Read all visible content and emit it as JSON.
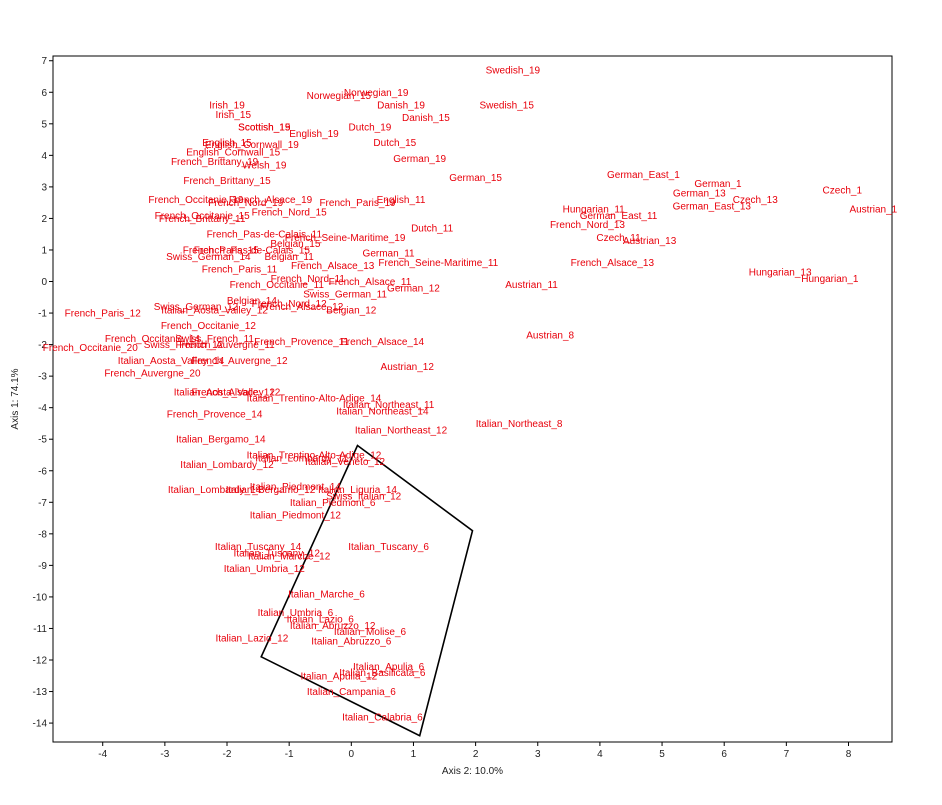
{
  "chart_data": {
    "type": "scatter",
    "title": "",
    "xlabel": "Axis 2: 10.0%",
    "ylabel": "Axis 1: 74.1%",
    "xlim": [
      -4.8,
      8.7
    ],
    "ylim": [
      -14.6,
      7.15
    ],
    "xticks": [
      -4,
      -3,
      -2,
      -1,
      0,
      1,
      2,
      3,
      4,
      5,
      6,
      7,
      8
    ],
    "yticks": [
      7,
      6,
      5,
      4,
      3,
      2,
      1,
      0,
      -1,
      -2,
      -3,
      -4,
      -5,
      -6,
      -7,
      -8,
      -9,
      -10,
      -11,
      -12,
      -13,
      -14
    ],
    "grid": false,
    "label_color": "#e8000b",
    "polygon_color": "#000000",
    "points": [
      {
        "label": "Swedish_19",
        "x": 2.6,
        "y": 6.7
      },
      {
        "label": "Norwegian_19",
        "x": 0.4,
        "y": 6.0
      },
      {
        "label": "Norwegian_15",
        "x": -0.2,
        "y": 5.9
      },
      {
        "label": "Danish_19",
        "x": 0.8,
        "y": 5.6
      },
      {
        "label": "Swedish_15",
        "x": 2.5,
        "y": 5.6
      },
      {
        "label": "Danish_15",
        "x": 1.2,
        "y": 5.2
      },
      {
        "label": "Irish_19",
        "x": -2.0,
        "y": 5.6
      },
      {
        "label": "Irish_15",
        "x": -1.9,
        "y": 5.3
      },
      {
        "label": "Scottish_19",
        "x": -1.4,
        "y": 4.9
      },
      {
        "label": "Scottish_15",
        "x": -1.4,
        "y": 4.9
      },
      {
        "label": "English_19",
        "x": -0.6,
        "y": 4.7
      },
      {
        "label": "Dutch_19",
        "x": 0.3,
        "y": 4.9
      },
      {
        "label": "Dutch_15",
        "x": 0.7,
        "y": 4.4
      },
      {
        "label": "English_15",
        "x": -2.0,
        "y": 4.4
      },
      {
        "label": "English_Cornwall_19",
        "x": -1.6,
        "y": 4.35
      },
      {
        "label": "English_Cornwall_15",
        "x": -1.9,
        "y": 4.1
      },
      {
        "label": "German_19",
        "x": 1.1,
        "y": 3.9
      },
      {
        "label": "French_Brittany_19",
        "x": -2.2,
        "y": 3.8
      },
      {
        "label": "Welsh_19",
        "x": -1.4,
        "y": 3.7
      },
      {
        "label": "German_15",
        "x": 2.0,
        "y": 3.3
      },
      {
        "label": "French_Brittany_15",
        "x": -2.0,
        "y": 3.2
      },
      {
        "label": "German_East_1",
        "x": 4.7,
        "y": 3.4
      },
      {
        "label": "German_1",
        "x": 5.9,
        "y": 3.1
      },
      {
        "label": "German_13",
        "x": 5.6,
        "y": 2.8
      },
      {
        "label": "German_East_13",
        "x": 5.8,
        "y": 2.4
      },
      {
        "label": "Czech_13",
        "x": 6.5,
        "y": 2.6
      },
      {
        "label": "Czech_1",
        "x": 7.9,
        "y": 2.9
      },
      {
        "label": "Austrian_1",
        "x": 8.4,
        "y": 2.3
      },
      {
        "label": "French_Occitanie_19",
        "x": -2.5,
        "y": 2.6
      },
      {
        "label": "French_Alsace_19",
        "x": -1.3,
        "y": 2.6
      },
      {
        "label": "French_Nord_19",
        "x": -1.7,
        "y": 2.5
      },
      {
        "label": "French_Paris_19",
        "x": 0.1,
        "y": 2.5
      },
      {
        "label": "English_11",
        "x": 0.8,
        "y": 2.6
      },
      {
        "label": "French_Occitanie_15",
        "x": -2.4,
        "y": 2.1
      },
      {
        "label": "French_Nord_15",
        "x": -1.0,
        "y": 2.2
      },
      {
        "label": "French_Brittany_11",
        "x": -2.4,
        "y": 2.0
      },
      {
        "label": "Hungarian_11",
        "x": 3.9,
        "y": 2.3
      },
      {
        "label": "German_East_11",
        "x": 4.3,
        "y": 2.1
      },
      {
        "label": "French_Nord_13",
        "x": 3.8,
        "y": 1.8
      },
      {
        "label": "Dutch_11",
        "x": 1.3,
        "y": 1.7
      },
      {
        "label": "Czech_11",
        "x": 4.3,
        "y": 1.4
      },
      {
        "label": "Austrian_13",
        "x": 4.8,
        "y": 1.3
      },
      {
        "label": "French_Pas-de-Calais_11",
        "x": -1.4,
        "y": 1.5
      },
      {
        "label": "French_Seine-Maritime_19",
        "x": -0.1,
        "y": 1.4
      },
      {
        "label": "Belgian_15",
        "x": -0.9,
        "y": 1.2
      },
      {
        "label": "French_Pas-de-Calais_15",
        "x": -1.6,
        "y": 1.0
      },
      {
        "label": "French_Paris_15",
        "x": -2.1,
        "y": 1.0
      },
      {
        "label": "Belgian_11",
        "x": -1.0,
        "y": 0.8
      },
      {
        "label": "German_11",
        "x": 0.6,
        "y": 0.9
      },
      {
        "label": "Swiss_German_14",
        "x": -2.3,
        "y": 0.8
      },
      {
        "label": "French_Paris_11",
        "x": -1.8,
        "y": 0.4
      },
      {
        "label": "French_Alsace_13",
        "x": -0.3,
        "y": 0.5
      },
      {
        "label": "French_Seine-Maritime_11",
        "x": 1.4,
        "y": 0.6
      },
      {
        "label": "French_Alsace_13",
        "x": 4.2,
        "y": 0.6
      },
      {
        "label": "Hungarian_13",
        "x": 6.9,
        "y": 0.3
      },
      {
        "label": "Hungarian_1",
        "x": 7.7,
        "y": 0.1
      },
      {
        "label": "French_Nord_11",
        "x": -0.7,
        "y": 0.1
      },
      {
        "label": "French_Alsace_11",
        "x": 0.3,
        "y": 0.0
      },
      {
        "label": "French_Occitanie_11",
        "x": -1.2,
        "y": -0.1
      },
      {
        "label": "Austrian_11",
        "x": 2.9,
        "y": -0.1
      },
      {
        "label": "German_12",
        "x": 1.0,
        "y": -0.2
      },
      {
        "label": "Swiss_German_11",
        "x": -0.1,
        "y": -0.4
      },
      {
        "label": "Belgian_14",
        "x": -1.6,
        "y": -0.6
      },
      {
        "label": "French_Nord_12",
        "x": -1.0,
        "y": -0.7
      },
      {
        "label": "Swiss_German_12",
        "x": -2.5,
        "y": -0.8
      },
      {
        "label": "French_Alsace_12",
        "x": -0.8,
        "y": -0.8
      },
      {
        "label": "Italian_Aosta_Valley_12",
        "x": -2.2,
        "y": -0.9
      },
      {
        "label": "Belgian_12",
        "x": 0.0,
        "y": -0.9
      },
      {
        "label": "French_Paris_12",
        "x": -4.0,
        "y": -1.0
      },
      {
        "label": "French_Occitanie_12",
        "x": -2.3,
        "y": -1.4
      },
      {
        "label": "Swiss_French_11",
        "x": -2.2,
        "y": -1.8
      },
      {
        "label": "French_Occitanie_14",
        "x": -3.2,
        "y": -1.8
      },
      {
        "label": "French_Provence_11",
        "x": -0.8,
        "y": -1.9
      },
      {
        "label": "French_Alsace_14",
        "x": 0.5,
        "y": -1.9
      },
      {
        "label": "Austrian_8",
        "x": 3.2,
        "y": -1.7
      },
      {
        "label": "French_Occitanie_20",
        "x": -4.2,
        "y": -2.1
      },
      {
        "label": "Swiss_French_12",
        "x": -2.7,
        "y": -2.0
      },
      {
        "label": "French_Auvergne_11",
        "x": -2.0,
        "y": -2.0
      },
      {
        "label": "Italian_Aosta_Valley_14",
        "x": -2.9,
        "y": -2.5
      },
      {
        "label": "French_Auvergne_12",
        "x": -1.8,
        "y": -2.5
      },
      {
        "label": "Austrian_12",
        "x": 0.9,
        "y": -2.7
      },
      {
        "label": "French_Auvergne_20",
        "x": -3.2,
        "y": -2.9
      },
      {
        "label": "Italian_Aosta_Valley_12",
        "x": -2.0,
        "y": -3.5
      },
      {
        "label": "French_Alsace_12",
        "x": -1.9,
        "y": -3.5
      },
      {
        "label": "Italian_Trentino-Alto-Adige_14",
        "x": -0.6,
        "y": -3.7
      },
      {
        "label": "Italian_Northeast_11",
        "x": 0.6,
        "y": -3.9
      },
      {
        "label": "Italian_Northeast_14",
        "x": 0.5,
        "y": -4.1
      },
      {
        "label": "French_Provence_14",
        "x": -2.2,
        "y": -4.2
      },
      {
        "label": "Italian_Northeast_8",
        "x": 2.7,
        "y": -4.5
      },
      {
        "label": "Italian_Northeast_12",
        "x": 0.8,
        "y": -4.7
      },
      {
        "label": "Italian_Bergamo_14",
        "x": -2.1,
        "y": -5.0
      },
      {
        "label": "Italian_Trentino-Alto-Adige_12",
        "x": -0.6,
        "y": -5.5
      },
      {
        "label": "Italian_Lombardy_11",
        "x": -0.8,
        "y": -5.6
      },
      {
        "label": "Italian_Veneto_12",
        "x": -0.1,
        "y": -5.7
      },
      {
        "label": "Italian_Lombardy_12",
        "x": -2.0,
        "y": -5.8
      },
      {
        "label": "Italian_Lombardy_14",
        "x": -2.2,
        "y": -6.6
      },
      {
        "label": "Italian_Bergamo_12",
        "x": -1.3,
        "y": -6.6
      },
      {
        "label": "Italian_Piedmont_14",
        "x": -0.9,
        "y": -6.5
      },
      {
        "label": "Italian_Liguria_14",
        "x": 0.1,
        "y": -6.6
      },
      {
        "label": "Swiss_Italian_12",
        "x": 0.2,
        "y": -6.8
      },
      {
        "label": "Italian_Piedmont_6",
        "x": -0.3,
        "y": -7.0
      },
      {
        "label": "Italian_Piedmont_12",
        "x": -0.9,
        "y": -7.4
      },
      {
        "label": "Italian_Tuscany_14",
        "x": -1.5,
        "y": -8.4
      },
      {
        "label": "Italian_Tuscany_6",
        "x": 0.6,
        "y": -8.4
      },
      {
        "label": "Italian_Tuscany_12",
        "x": -1.2,
        "y": -8.6
      },
      {
        "label": "Italian_Marche_12",
        "x": -1.0,
        "y": -8.7
      },
      {
        "label": "Italian_Umbria_12",
        "x": -1.4,
        "y": -9.1
      },
      {
        "label": "Italian_Marche_6",
        "x": -0.4,
        "y": -9.9
      },
      {
        "label": "Italian_Umbria_6",
        "x": -0.9,
        "y": -10.5
      },
      {
        "label": "Italian_Lazio_6",
        "x": -0.5,
        "y": -10.7
      },
      {
        "label": "Italian_Abruzzo_12",
        "x": -0.3,
        "y": -10.9
      },
      {
        "label": "Italian_Molise_6",
        "x": 0.3,
        "y": -11.1
      },
      {
        "label": "Italian_Abruzzo_6",
        "x": 0.0,
        "y": -11.4
      },
      {
        "label": "Italian_Lazio_12",
        "x": -1.6,
        "y": -11.3
      },
      {
        "label": "Italian_Apulia_6",
        "x": 0.6,
        "y": -12.2
      },
      {
        "label": "Italian_Apulia_12",
        "x": -0.2,
        "y": -12.5
      },
      {
        "label": "Italian_Basilicata_6",
        "x": 0.5,
        "y": -12.4
      },
      {
        "label": "Italian_Campania_6",
        "x": 0.0,
        "y": -13.0
      },
      {
        "label": "Italian_Calabria_6",
        "x": 0.5,
        "y": -13.8
      }
    ],
    "polygon": [
      {
        "x": 0.1,
        "y": -5.2
      },
      {
        "x": 1.95,
        "y": -7.9
      },
      {
        "x": 1.1,
        "y": -14.4
      },
      {
        "x": -1.45,
        "y": -11.9
      }
    ]
  }
}
